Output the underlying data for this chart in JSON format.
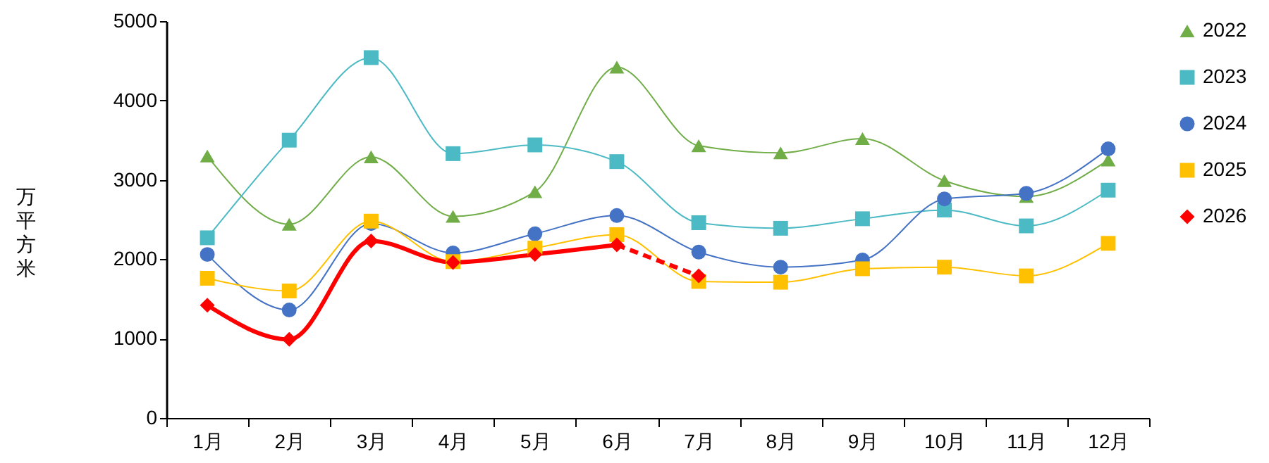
{
  "chart_data": {
    "type": "line",
    "ylabel": "万平方米",
    "categories": [
      "1月",
      "2月",
      "3月",
      "4月",
      "5月",
      "6月",
      "7月",
      "8月",
      "9月",
      "10月",
      "11月",
      "12月"
    ],
    "series": [
      {
        "name": "2022",
        "color": "#70ad47",
        "marker": "triangle",
        "values": [
          3300,
          2440,
          3290,
          2540,
          2850,
          4420,
          3430,
          3340,
          3520,
          2990,
          2790,
          3250
        ]
      },
      {
        "name": "2023",
        "color": "#4bbac4",
        "marker": "square",
        "values": [
          2270,
          3500,
          4540,
          3330,
          3440,
          3230,
          2460,
          2390,
          2510,
          2620,
          2420,
          2870
        ]
      },
      {
        "name": "2024",
        "color": "#4472c4",
        "marker": "circle",
        "values": [
          2060,
          1360,
          2450,
          2080,
          2320,
          2550,
          2090,
          1900,
          1990,
          2760,
          2830,
          3390
        ]
      },
      {
        "name": "2025",
        "color": "#ffc000",
        "marker": "square",
        "values": [
          1760,
          1600,
          2480,
          1970,
          2140,
          2310,
          1720,
          1710,
          1880,
          1900,
          1790,
          2200
        ]
      },
      {
        "name": "2026",
        "color": "#ff0000",
        "marker": "diamond",
        "values": [
          1420,
          990,
          2230,
          1960,
          2060,
          2180,
          null,
          null,
          null,
          null,
          null,
          null
        ]
      },
      {
        "color": "#ff0000",
        "marker": "diamond",
        "line_style": "dashed",
        "values": [
          null,
          null,
          null,
          null,
          null,
          2180,
          1790,
          null,
          null,
          null,
          null,
          null
        ]
      }
    ],
    "ylim": [
      0,
      5000
    ],
    "yticks": [
      0,
      1000,
      2000,
      3000,
      4000,
      5000
    ],
    "grid": false,
    "legend": "right",
    "line_style": "solid"
  }
}
